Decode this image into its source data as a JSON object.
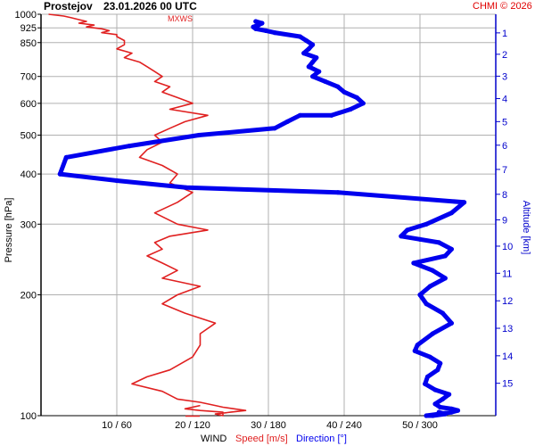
{
  "header": {
    "station": "Prostejov",
    "datetime": "23.01.2026 00 UTC",
    "credit": "CHMI © 2026",
    "mxws_label": "MXWS"
  },
  "chart_data": {
    "type": "line",
    "title": "Prostejov   23.01.2026 00 UTC",
    "pressure_axis": {
      "label": "Pressure [hPa]",
      "scale": "log",
      "range": [
        1000,
        100
      ],
      "ticks": [
        100,
        200,
        300,
        400,
        500,
        600,
        700,
        850,
        925,
        1000
      ]
    },
    "altitude_axis": {
      "label": "Altitude [km]",
      "ticks": [
        1,
        2,
        3,
        4,
        5,
        6,
        7,
        8,
        9,
        10,
        11,
        12,
        13,
        14,
        15
      ]
    },
    "x_axis": {
      "title": "WIND",
      "speed_label": "Speed [m/s]",
      "direction_label": "Direction [°]",
      "speed_range": [
        0,
        60
      ],
      "direction_range": [
        0,
        360
      ],
      "tick_labels": [
        "10 / 60",
        "20 / 120",
        "30 / 180",
        "40 / 240",
        "50 / 300"
      ]
    },
    "colors": {
      "speed": "#e02020",
      "direction": "#0000ee",
      "altitude": "#0000cc",
      "credit": "#e00000",
      "grid": "#b0b0b0"
    },
    "series": [
      {
        "name": "Speed [m/s]",
        "x": [
          1,
          3,
          4,
          5,
          6,
          5,
          7,
          6,
          8,
          9,
          8,
          10,
          10,
          11,
          11,
          10,
          12,
          11,
          13,
          14,
          15,
          16,
          15,
          17,
          16,
          18,
          20,
          17,
          22,
          19,
          17,
          15,
          16,
          14,
          13,
          16,
          18,
          17,
          20,
          18,
          15,
          18,
          22,
          17,
          15,
          16,
          14,
          16,
          18,
          16,
          21,
          18,
          16,
          19,
          23,
          21,
          21,
          20,
          17,
          14,
          12,
          16,
          18,
          21,
          23,
          24,
          27,
          25,
          23,
          24,
          24,
          24,
          21,
          19,
          21
        ],
        "y": [
          1000,
          990,
          980,
          970,
          960,
          950,
          940,
          930,
          920,
          910,
          900,
          890,
          880,
          860,
          840,
          820,
          800,
          780,
          760,
          740,
          720,
          700,
          680,
          660,
          640,
          620,
          600,
          580,
          560,
          540,
          520,
          500,
          480,
          460,
          440,
          420,
          400,
          380,
          360,
          340,
          320,
          300,
          290,
          280,
          270,
          260,
          250,
          240,
          230,
          220,
          210,
          200,
          190,
          180,
          170,
          160,
          150,
          140,
          130,
          125,
          120,
          115,
          110,
          108,
          106,
          105,
          103,
          102,
          101,
          100,
          101,
          102,
          103,
          104,
          106
        ]
      },
      {
        "name": "Direction [°]",
        "x": [
          170,
          175,
          172,
          168,
          170,
          178,
          185,
          205,
          210,
          215,
          212,
          208,
          218,
          215,
          212,
          220,
          215,
          225,
          235,
          240,
          250,
          255,
          245,
          230,
          205,
          195,
          185,
          125,
          70,
          20,
          15,
          60,
          115,
          235,
          335,
          325,
          305,
          290,
          285,
          300,
          315,
          325,
          320,
          295,
          310,
          320,
          308,
          300,
          305,
          318,
          325,
          310,
          298,
          296,
          308,
          316,
          314,
          306,
          304,
          312,
          323,
          318,
          312,
          316,
          325,
          330,
          325,
          315,
          305,
          310,
          320,
          315
        ],
        "y": [
          960,
          950,
          940,
          930,
          920,
          910,
          900,
          880,
          860,
          840,
          820,
          800,
          780,
          760,
          740,
          720,
          700,
          680,
          660,
          640,
          620,
          600,
          580,
          560,
          560,
          540,
          520,
          500,
          470,
          440,
          400,
          385,
          370,
          360,
          340,
          320,
          300,
          290,
          280,
          275,
          270,
          260,
          250,
          240,
          230,
          220,
          210,
          200,
          190,
          180,
          170,
          160,
          150,
          145,
          140,
          135,
          130,
          125,
          120,
          116,
          113,
          110,
          107,
          105,
          104,
          103,
          102,
          101,
          100,
          100,
          101,
          102
        ]
      }
    ],
    "legend": "bottom"
  }
}
